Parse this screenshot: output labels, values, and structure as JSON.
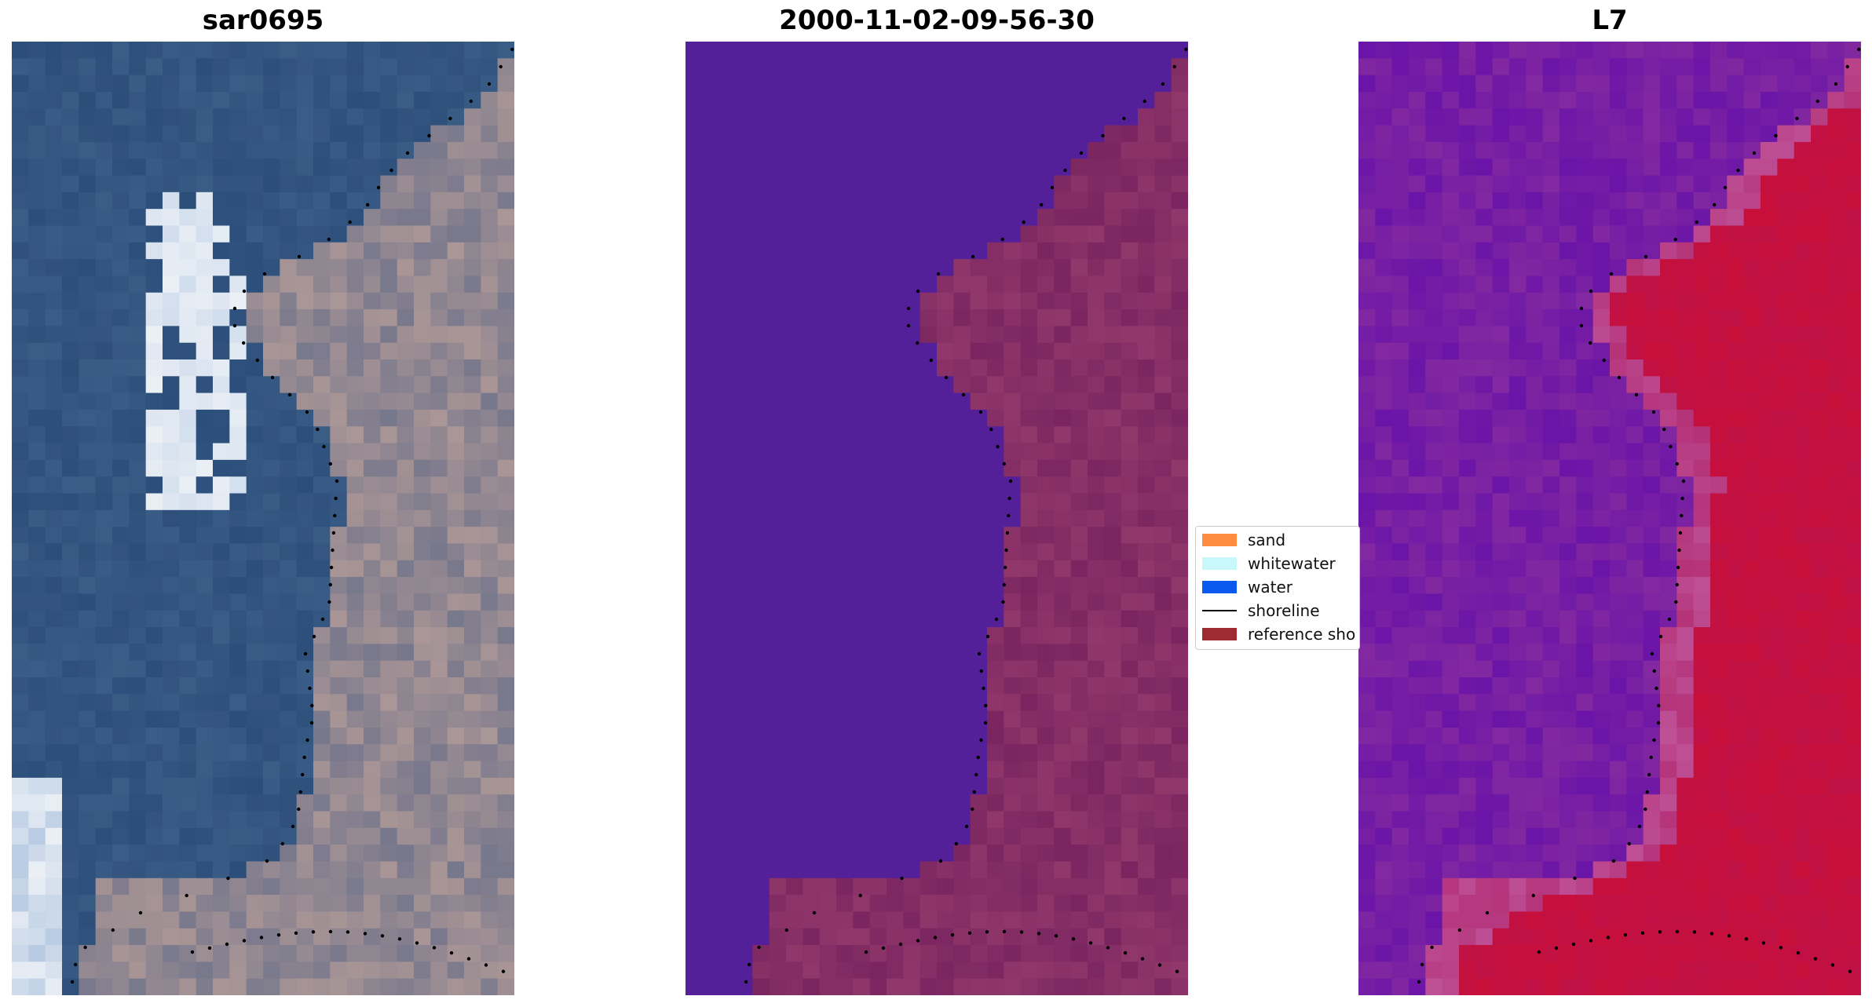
{
  "panels": [
    {
      "title": "sar0695",
      "kind": "rgb"
    },
    {
      "title": "2000-11-02-09-56-30",
      "kind": "classified"
    },
    {
      "title": "L7",
      "kind": "index"
    }
  ],
  "legend": {
    "items": [
      {
        "label": "sand",
        "type": "patch",
        "color": "#ff8c40"
      },
      {
        "label": "whitewater",
        "type": "patch",
        "color": "#c8f8fa"
      },
      {
        "label": "water",
        "type": "patch",
        "color": "#0a5af0"
      },
      {
        "label": "shoreline",
        "type": "line",
        "color": "#000000"
      },
      {
        "label": "reference sho",
        "type": "patch",
        "color": "#9e2b30"
      }
    ]
  },
  "colors": {
    "water_dark": "#2c4e7a",
    "land_rgb": "#8b8a92",
    "classified_water": "#54209a",
    "classified_land": "#7a2560",
    "index_low": "#6a14a8",
    "index_high": "#c70f3a"
  }
}
